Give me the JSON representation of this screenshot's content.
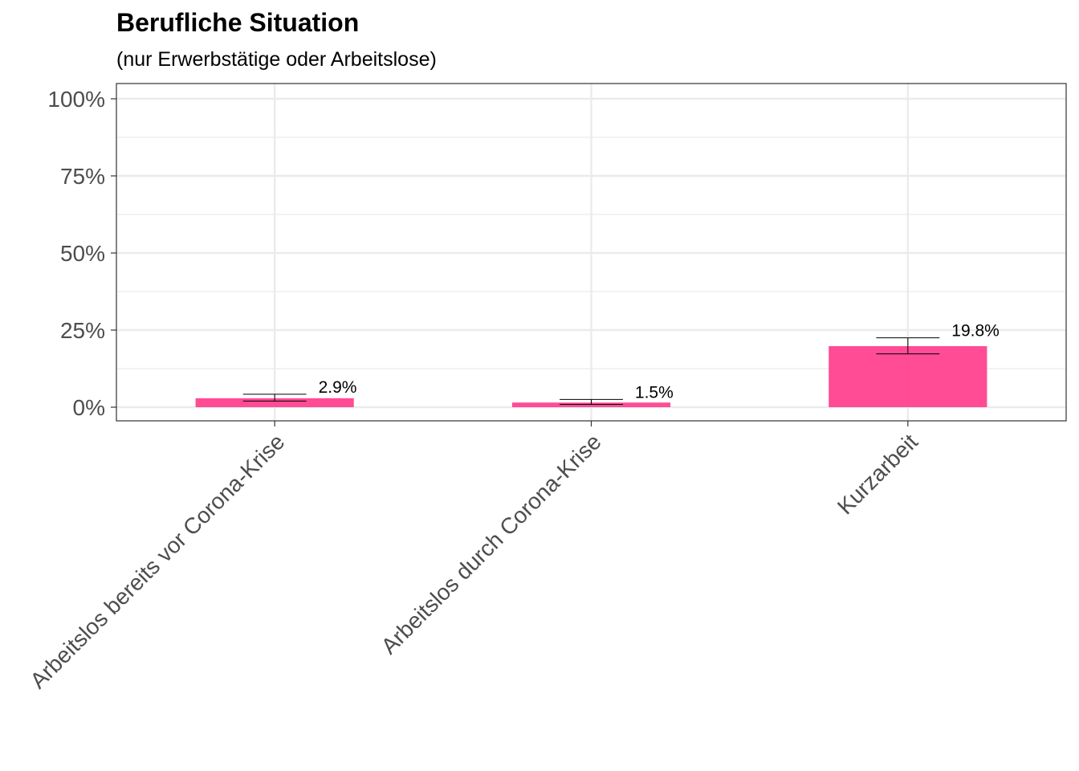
{
  "chart_data": {
    "type": "bar",
    "title": "Berufliche Situation",
    "subtitle": "(nur Erwerbstätige oder Arbeitslose)",
    "xlabel": "",
    "ylabel": "",
    "categories": [
      "Arbeitslos bereits vor Corona-Krise",
      "Arbeitslos durch Corona-Krise",
      "Kurzarbeit"
    ],
    "values": [
      2.9,
      1.5,
      19.8
    ],
    "error_low": [
      2.0,
      0.9,
      17.3
    ],
    "error_high": [
      4.2,
      2.5,
      22.5
    ],
    "data_labels": [
      "2.9%",
      "1.5%",
      "19.8%"
    ],
    "ylim": [
      -4.5,
      105
    ],
    "yticks": [
      0,
      25,
      50,
      75,
      100
    ],
    "ytick_labels": [
      "0%",
      "25%",
      "50%",
      "75%",
      "100%"
    ],
    "grid": true,
    "bar_color": "#ff3d8b",
    "panel_border_color": "#333333",
    "grid_color": "#ebebeb"
  }
}
